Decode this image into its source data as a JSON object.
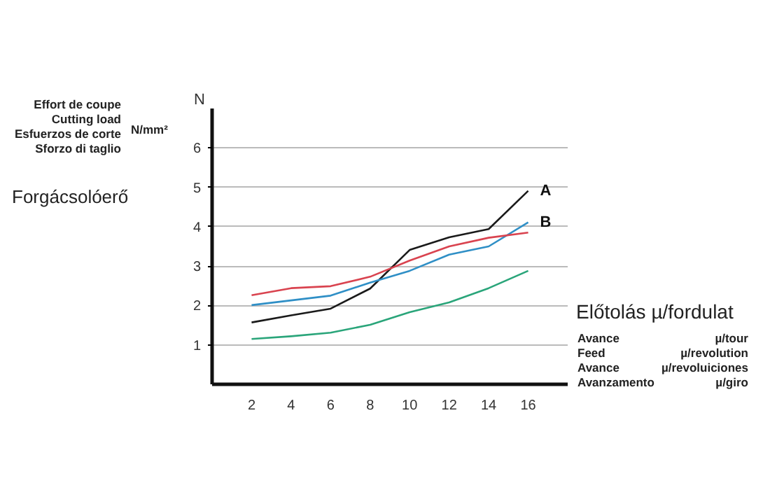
{
  "chart_data": {
    "type": "line",
    "xlabel": "Előtolás µ/fordulat",
    "ylabel": "Forgácsolóerő",
    "annotations": [
      "Effort de coupe\nCutting load\nEsfuerzos de corte\nSforzo di taglio",
      "N/mm²",
      "N",
      "Avance\nFeed\nAvance\nAvanzamento",
      "µ/tour\nµ/revolution\nµ/revoluiciones\nµ/giro"
    ],
    "x": [
      2,
      4,
      6,
      8,
      10,
      12,
      14,
      16
    ],
    "series": [
      {
        "name": "A",
        "color": "#1a1a1a",
        "values": [
          1.57,
          1.75,
          1.92,
          2.43,
          3.41,
          3.73,
          3.94,
          4.91
        ]
      },
      {
        "name": "B",
        "color": "#2f8fc6",
        "values": [
          2.01,
          2.13,
          2.25,
          2.58,
          2.88,
          3.29,
          3.5,
          4.11
        ]
      },
      {
        "color": "#d9434f",
        "values": [
          2.26,
          2.44,
          2.49,
          2.73,
          3.14,
          3.5,
          3.72,
          3.85
        ]
      },
      {
        "color": "#2aa57a",
        "values": [
          1.15,
          1.22,
          1.31,
          1.51,
          1.83,
          2.08,
          2.44,
          2.88
        ]
      }
    ],
    "xlim": [
      0,
      18
    ],
    "ylim": [
      0,
      7
    ],
    "xticks": [
      2,
      4,
      6,
      8,
      10,
      12,
      14,
      16
    ],
    "yticks": [
      1,
      2,
      3,
      4,
      5,
      6
    ],
    "grid": "y",
    "legend": false,
    "marker": "none",
    "line_style": "solid"
  }
}
